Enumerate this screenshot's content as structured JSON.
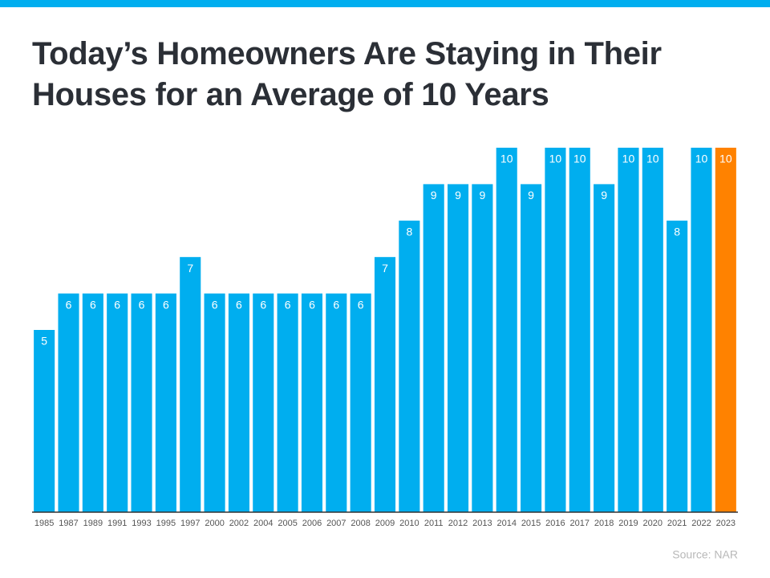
{
  "chart_data": {
    "type": "bar",
    "title": "Today’s Homeowners Are Staying in Their Houses for an Average of 10 Years",
    "categories": [
      "1985",
      "1987",
      "1989",
      "1991",
      "1993",
      "1995",
      "1997",
      "2000",
      "2002",
      "2004",
      "2005",
      "2006",
      "2007",
      "2008",
      "2009",
      "2010",
      "2011",
      "2012",
      "2013",
      "2014",
      "2015",
      "2016",
      "2017",
      "2018",
      "2019",
      "2020",
      "2021",
      "2022",
      "2023"
    ],
    "values": [
      5,
      6,
      6,
      6,
      6,
      6,
      7,
      6,
      6,
      6,
      6,
      6,
      6,
      6,
      7,
      8,
      9,
      9,
      9,
      10,
      9,
      10,
      10,
      9,
      10,
      10,
      8,
      10,
      10
    ],
    "colors": [
      "#00aeef",
      "#00aeef",
      "#00aeef",
      "#00aeef",
      "#00aeef",
      "#00aeef",
      "#00aeef",
      "#00aeef",
      "#00aeef",
      "#00aeef",
      "#00aeef",
      "#00aeef",
      "#00aeef",
      "#00aeef",
      "#00aeef",
      "#00aeef",
      "#00aeef",
      "#00aeef",
      "#00aeef",
      "#00aeef",
      "#00aeef",
      "#00aeef",
      "#00aeef",
      "#00aeef",
      "#00aeef",
      "#00aeef",
      "#00aeef",
      "#00aeef",
      "#ff8200"
    ],
    "ylim": [
      0,
      10
    ],
    "source": "Source: NAR"
  }
}
